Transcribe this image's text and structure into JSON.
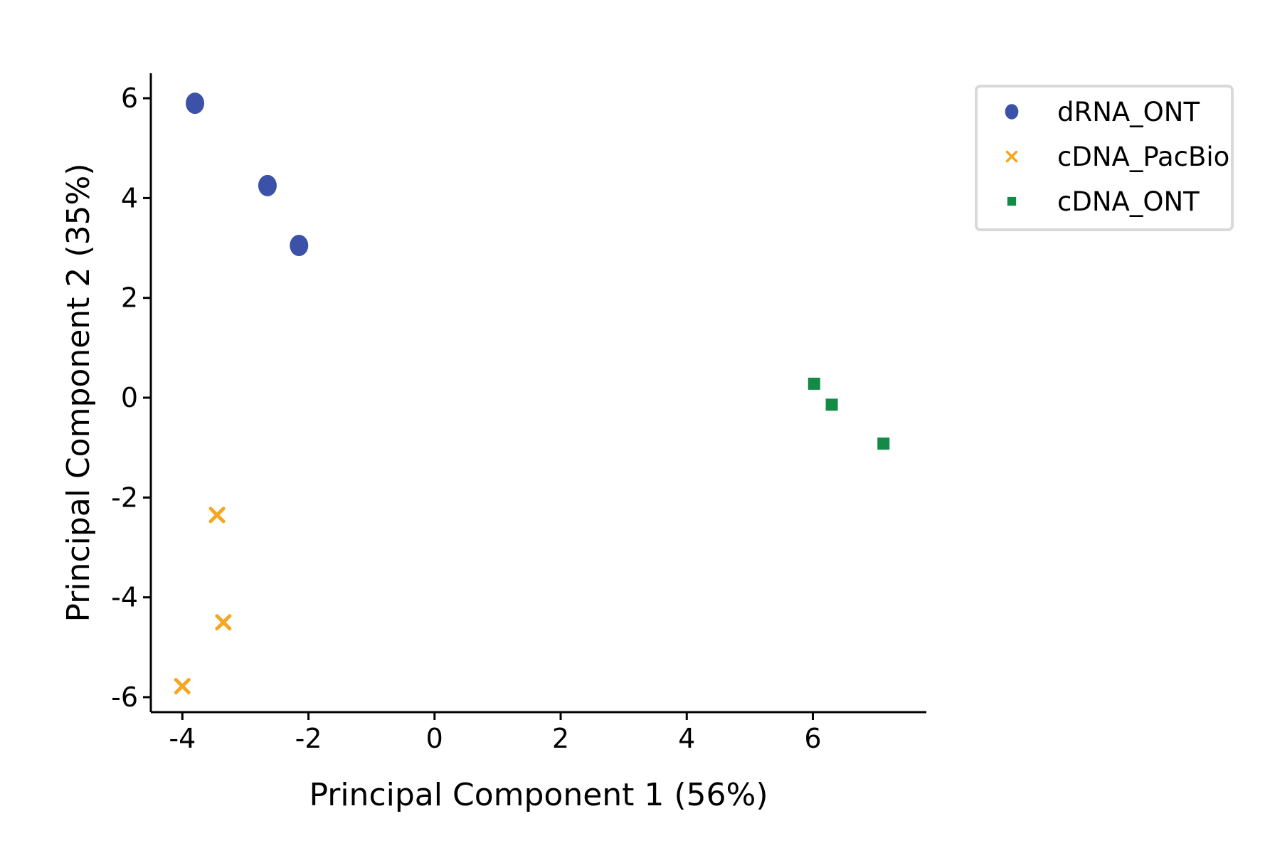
{
  "chart_data": {
    "type": "scatter",
    "title": "",
    "xlabel": "Principal Component 1 (56%)",
    "ylabel": "Principal Component 2 (35%)",
    "xlim": [
      -4.5,
      7.8
    ],
    "ylim": [
      -6.3,
      6.5
    ],
    "xticks": [
      -4,
      -2,
      0,
      2,
      4,
      6
    ],
    "yticks": [
      -6,
      -4,
      -2,
      0,
      2,
      4,
      6
    ],
    "grid": false,
    "legend": "upper-right-outside",
    "series": [
      {
        "name": "dRNA_ONT",
        "marker": "circle",
        "color": "#3b52a8",
        "points": [
          {
            "x": -3.8,
            "y": 5.9
          },
          {
            "x": -2.65,
            "y": 4.25
          },
          {
            "x": -2.15,
            "y": 3.05
          }
        ]
      },
      {
        "name": "cDNA_PacBio",
        "marker": "x",
        "color": "#f5a623",
        "points": [
          {
            "x": -3.45,
            "y": -2.35
          },
          {
            "x": -3.35,
            "y": -4.5
          },
          {
            "x": -4.0,
            "y": -5.78
          }
        ]
      },
      {
        "name": "cDNA_ONT",
        "marker": "square",
        "color": "#138a45",
        "points": [
          {
            "x": 6.02,
            "y": 0.28
          },
          {
            "x": 6.3,
            "y": -0.14
          },
          {
            "x": 7.12,
            "y": -0.92
          }
        ]
      }
    ]
  }
}
